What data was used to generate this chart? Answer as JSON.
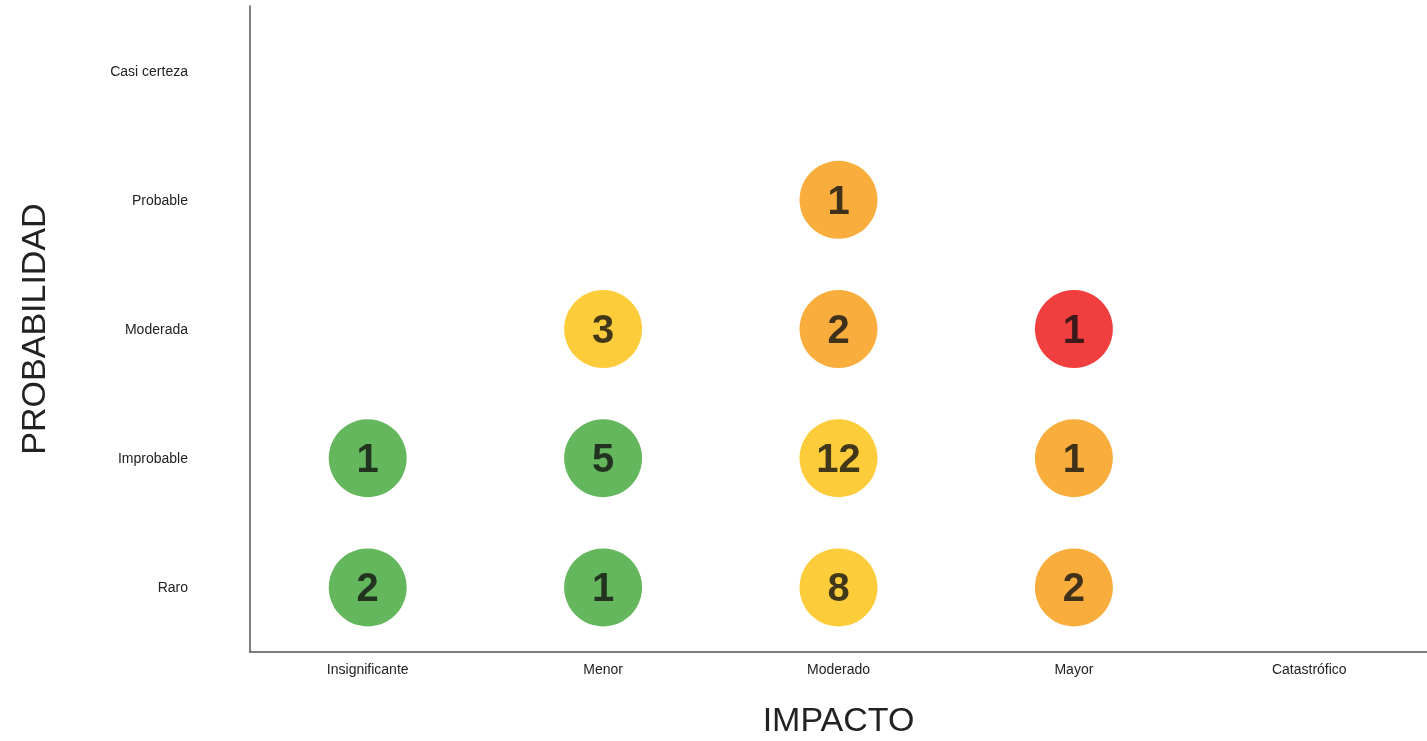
{
  "chart_data": {
    "type": "heatmap",
    "xlabel": "IMPACTO",
    "ylabel": "PROBABILIDAD",
    "categories": [
      "Insignificante",
      "Menor",
      "Moderado",
      "Mayor",
      "Catastrófico"
    ],
    "y_categories": [
      "Casi certeza",
      "Probable",
      "Moderada",
      "Improbable",
      "Raro"
    ],
    "cells": [
      [
        null,
        null,
        null,
        null,
        null
      ],
      [
        null,
        null,
        1,
        null,
        null
      ],
      [
        null,
        3,
        2,
        1,
        null
      ],
      [
        1,
        5,
        12,
        1,
        null
      ],
      [
        2,
        1,
        8,
        2,
        null
      ]
    ],
    "colors": [
      [
        null,
        null,
        null,
        null,
        null
      ],
      [
        null,
        null,
        "#f7980d",
        null,
        null
      ],
      [
        null,
        "#fbbf0a",
        "#f7980d",
        "#ee0f0f",
        null
      ],
      [
        "#3fa535",
        "#3fa535",
        "#fbbf0a",
        "#f7980d",
        null
      ],
      [
        "#3fa535",
        "#3fa535",
        "#fbbf0a",
        "#f7980d",
        null
      ]
    ],
    "data_labels": true,
    "grid": false
  }
}
